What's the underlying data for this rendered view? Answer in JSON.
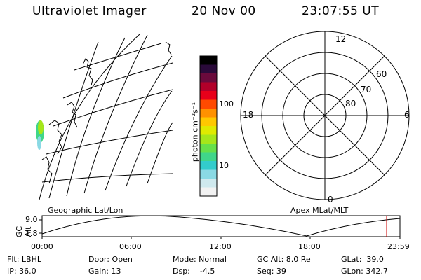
{
  "header": {
    "instrument": "Ultraviolet Imager",
    "date": "20 Nov 00",
    "time": "23:07:55 UT"
  },
  "colorbar": {
    "unit_label": "photon cm⁻²s⁻¹",
    "ticks": [
      "100",
      "10"
    ],
    "colors": [
      "#f2f2f2",
      "#cfe9ee",
      "#8ad9e4",
      "#33cccc",
      "#40d68a",
      "#66e04a",
      "#a6e61a",
      "#e0ea00",
      "#ffc800",
      "#ff9100",
      "#ff4a00",
      "#e8001a",
      "#b2002a",
      "#6a0a3c",
      "#2a0a3a",
      "#000000"
    ]
  },
  "geo_map": {
    "caption": "Geographic Lat/Lon"
  },
  "polar_plot": {
    "caption": "Apex MLat/MLT",
    "mlt_labels": [
      "12",
      "18",
      "6",
      "0"
    ],
    "lat_labels": [
      "60",
      "70",
      "80"
    ]
  },
  "timeline": {
    "axis_title": "GC Alt",
    "y_ticks": [
      "9.0",
      "1.8"
    ],
    "x_ticks": [
      "00:00",
      "06:00",
      "12:00",
      "18:00",
      "23:59"
    ],
    "marker_color": "#cc0000"
  },
  "status": {
    "flt": "Flt: LBHL",
    "ip": "IP: 36.0",
    "door": "Door: Open",
    "gain": "Gain: 13",
    "mode": "Mode: Normal",
    "dsp": "Dsp:    -4.5",
    "gc_alt": "GC Alt: 8.0 Re",
    "seq": "Seq: 39",
    "glat": "GLat:  39.0",
    "glon": "GLon: 342.7"
  }
}
